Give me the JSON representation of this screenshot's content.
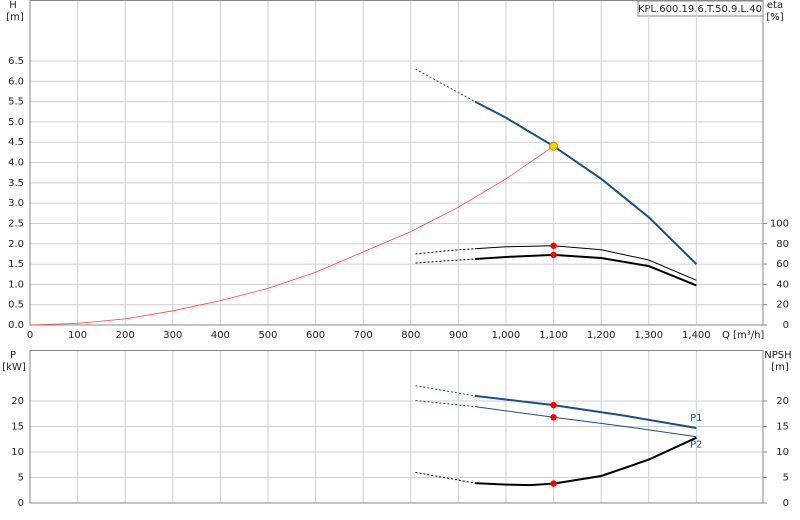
{
  "chart_data": [
    {
      "type": "line",
      "title": "KPL.600.19.6.T.50.9.L.40",
      "y_label": "H",
      "y_unit": "[m]",
      "y2_label": "eta",
      "y2_unit": "[%]",
      "x_label": "Q [m³/h]",
      "xlim": [
        0,
        1540
      ],
      "ylim": [
        0,
        8
      ],
      "y2lim": [
        0,
        320
      ],
      "grid": true,
      "xticks": [
        0,
        100,
        200,
        300,
        400,
        500,
        600,
        700,
        800,
        900,
        {
          "value": 1000,
          "label": "1,000"
        },
        {
          "value": 1100,
          "label": "1,100"
        },
        {
          "value": 1200,
          "label": "1,200"
        },
        {
          "value": 1300,
          "label": "1,300"
        },
        {
          "value": 1400,
          "label": "1,400"
        }
      ],
      "yticks": [
        {
          "value": 0,
          "label": "0.0"
        },
        0.5,
        {
          "value": 1,
          "label": "1.0"
        },
        1.5,
        {
          "value": 2,
          "label": "2.0"
        },
        2.5,
        {
          "value": 3,
          "label": "3.0"
        },
        3.5,
        {
          "value": 4,
          "label": "4.0"
        },
        4.5,
        {
          "value": 5,
          "label": "5.0"
        },
        5.5,
        {
          "value": 6,
          "label": "6.0"
        },
        6.5
      ],
      "y2ticks": [
        0,
        20,
        40,
        60,
        80,
        100
      ],
      "series": [
        {
          "color": "#ff4040",
          "width": 0.8,
          "style": "solid",
          "x": [
            0,
            100,
            200,
            300,
            400,
            500,
            600,
            700,
            800,
            900,
            1000,
            1100
          ],
          "values": [
            0,
            0.04,
            0.15,
            0.35,
            0.6,
            0.9,
            1.3,
            1.8,
            2.3,
            2.9,
            3.6,
            4.4
          ]
        },
        {
          "color": "#1a4f8a",
          "width": 1,
          "style": "dotted",
          "x": [
            810,
            935
          ],
          "values": [
            6.3,
            5.5
          ]
        },
        {
          "color": "#1a4f8a",
          "width": 2,
          "style": "solid",
          "x": [
            935,
            1000,
            1100,
            1200,
            1300,
            1400
          ],
          "values": [
            5.5,
            5.1,
            4.4,
            3.6,
            2.65,
            1.5
          ]
        },
        {
          "color": "#000000",
          "width": 1,
          "style": "dotted",
          "axis": "y2",
          "x": [
            810,
            900,
            935
          ],
          "values": [
            70,
            74,
            75
          ]
        },
        {
          "color": "#000000",
          "width": 1,
          "style": "solid",
          "axis": "y2",
          "x": [
            935,
            1000,
            1100,
            1200,
            1300,
            1400
          ],
          "values": [
            75,
            77,
            78,
            74,
            64,
            44
          ]
        },
        {
          "color": "#000000",
          "width": 1,
          "style": "dotted",
          "axis": "y2",
          "x": [
            810,
            900,
            935
          ],
          "values": [
            61,
            64,
            65
          ]
        },
        {
          "color": "#000000",
          "width": 2,
          "style": "solid",
          "axis": "y2",
          "x": [
            935,
            1000,
            1100,
            1200,
            1300,
            1400
          ],
          "values": [
            65,
            67,
            69,
            66,
            58,
            39
          ]
        },
        {
          "color": "#ff0000",
          "style": "marker",
          "axis": "y2",
          "x": [
            1100,
            1100
          ],
          "values": [
            78,
            69
          ]
        },
        {
          "color": "#ffd700",
          "style": "marker",
          "x": [
            1100
          ],
          "values": [
            4.4
          ]
        }
      ]
    },
    {
      "type": "line",
      "y_label": "P",
      "y_unit": "[kW]",
      "y2_label": "NPSH",
      "y2_unit": "[m]",
      "xlim": [
        0,
        1540
      ],
      "ylim": [
        0,
        30
      ],
      "y2lim": [
        0,
        30
      ],
      "grid": true,
      "xticks": [
        0,
        100,
        200,
        300,
        400,
        500,
        600,
        700,
        800,
        900,
        1000,
        1100,
        1200,
        1300,
        1400
      ],
      "yticks": [
        0,
        5,
        10,
        15,
        20
      ],
      "y2ticks": [
        0,
        5,
        10,
        15,
        20
      ],
      "series": [
        {
          "color": "#1a4f8a",
          "width": 1,
          "style": "dotted",
          "x": [
            810,
            935
          ],
          "values": [
            23,
            21
          ]
        },
        {
          "name": "P1",
          "color": "#1a4f8a",
          "width": 2,
          "style": "solid",
          "x": [
            935,
            1100,
            1250,
            1400
          ],
          "values": [
            21,
            19.2,
            17.1,
            14.7
          ]
        },
        {
          "color": "#1a4f8a",
          "width": 1,
          "style": "dotted",
          "x": [
            810,
            935
          ],
          "values": [
            20.1,
            18.9
          ]
        },
        {
          "name": "P2",
          "color": "#1a4f8a",
          "width": 1,
          "style": "solid",
          "x": [
            935,
            1100,
            1250,
            1400
          ],
          "values": [
            18.9,
            16.8,
            15,
            13
          ]
        },
        {
          "color": "#000000",
          "width": 1,
          "style": "dotted",
          "axis": "y2",
          "x": [
            810,
            900,
            935
          ],
          "values": [
            6,
            4.5,
            3.9
          ]
        },
        {
          "color": "#000000",
          "width": 2,
          "style": "solid",
          "axis": "y2",
          "x": [
            935,
            1000,
            1050,
            1100,
            1200,
            1300,
            1400
          ],
          "values": [
            3.9,
            3.6,
            3.5,
            3.8,
            5.3,
            8.5,
            12.8
          ]
        },
        {
          "color": "#ff0000",
          "style": "marker",
          "x": [
            1100,
            1100
          ],
          "values": [
            19.2,
            16.8
          ]
        },
        {
          "color": "#ff0000",
          "style": "marker",
          "axis": "y2",
          "x": [
            1100
          ],
          "values": [
            3.8
          ]
        }
      ]
    }
  ]
}
